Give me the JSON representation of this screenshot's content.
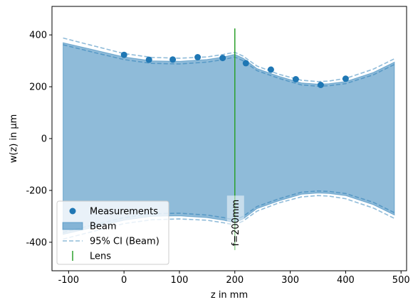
{
  "chart_data": {
    "type": "area",
    "title": "",
    "xlabel": "z in mm",
    "ylabel": "w(z) in µm",
    "xlim": [
      -130,
      510
    ],
    "ylim": [
      -510,
      510
    ],
    "xticks": [
      -100,
      0,
      100,
      200,
      300,
      400,
      500
    ],
    "yticks": [
      -400,
      -200,
      0,
      200,
      400
    ],
    "xtick_labels": [
      "-100",
      "0",
      "100",
      "200",
      "300",
      "400",
      "500"
    ],
    "ytick_labels": [
      "-400",
      "-200",
      "0",
      "200",
      "400"
    ],
    "grid": false,
    "legend_position": "lower-left",
    "colors": {
      "measurements": "#1f77b4",
      "beam_fill": "#1f77b4",
      "ci": "#1f77b4",
      "lens": "#2ca02c"
    },
    "measurements": {
      "x": [
        0,
        45,
        88,
        133,
        178,
        220,
        265,
        310,
        355,
        400
      ],
      "y": [
        323,
        304,
        305,
        314,
        311,
        291,
        266,
        229,
        207,
        231
      ]
    },
    "beam": {
      "z": [
        -110,
        -50,
        0,
        50,
        100,
        150,
        180,
        200,
        215,
        240,
        280,
        320,
        350,
        370,
        400,
        450,
        488
      ],
      "w": [
        370,
        340,
        315,
        300,
        298,
        305,
        315,
        325,
        310,
        270,
        240,
        215,
        210,
        212,
        220,
        255,
        295
      ]
    },
    "ci_upper": {
      "z": [
        -110,
        -50,
        0,
        50,
        100,
        150,
        180,
        200,
        215,
        240,
        280,
        320,
        350,
        370,
        400,
        450,
        488
      ],
      "w": [
        388,
        355,
        328,
        313,
        310,
        315,
        325,
        333,
        318,
        280,
        248,
        225,
        220,
        222,
        232,
        268,
        308
      ]
    },
    "ci_lower": {
      "z": [
        -110,
        -50,
        0,
        50,
        100,
        150,
        180,
        200,
        215,
        240,
        280,
        320,
        350,
        370,
        400,
        450,
        488
      ],
      "w": [
        362,
        330,
        305,
        290,
        288,
        295,
        305,
        315,
        300,
        262,
        232,
        207,
        202,
        204,
        212,
        246,
        286
      ]
    },
    "lens": {
      "z": 200,
      "y_range": [
        -430,
        425
      ],
      "label": "f=200mm"
    },
    "legend": [
      {
        "key": "measurements",
        "label": "Measurements"
      },
      {
        "key": "beam",
        "label": "Beam"
      },
      {
        "key": "ci",
        "label": "95% CI (Beam)"
      },
      {
        "key": "lens",
        "label": "Lens"
      }
    ]
  }
}
